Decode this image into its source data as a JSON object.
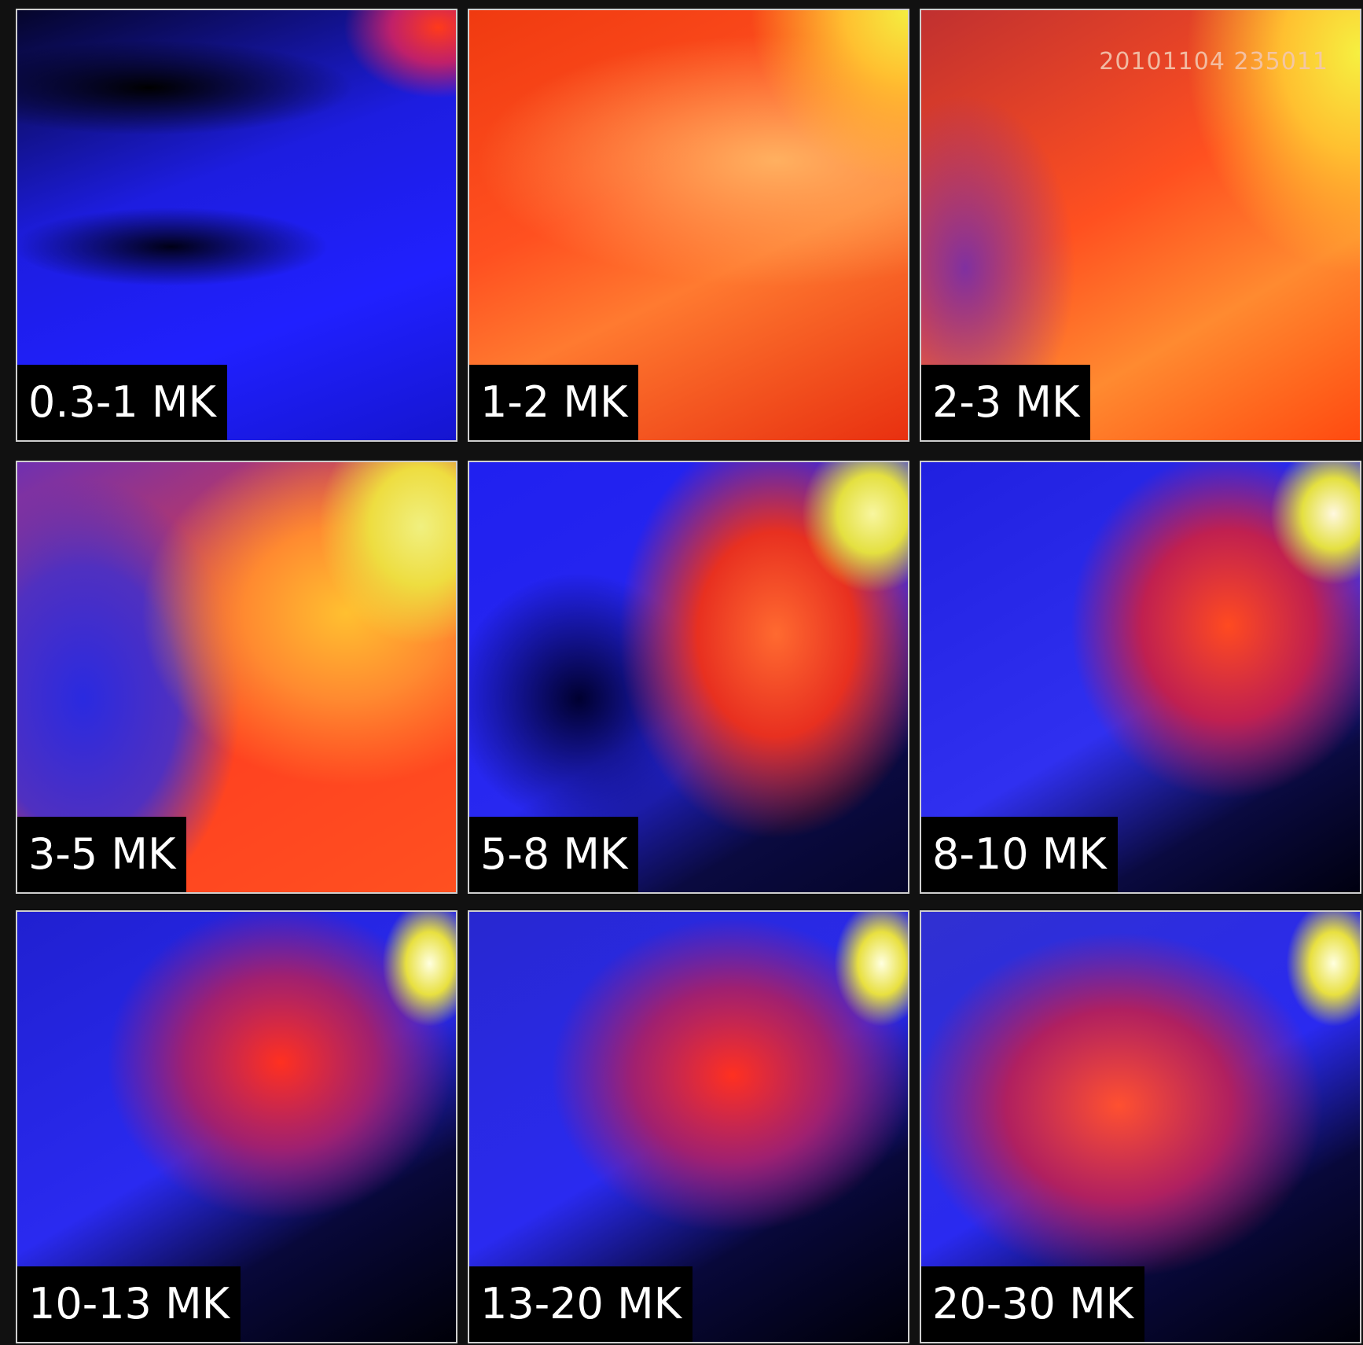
{
  "panels": [
    {
      "label": "0.3-1 MK"
    },
    {
      "label": "1-2 MK"
    },
    {
      "label": "2-3 MK",
      "timestamp": "20101104 235011"
    },
    {
      "label": "3-5 MK"
    },
    {
      "label": "5-8 MK"
    },
    {
      "label": "8-10 MK"
    },
    {
      "label": "10-13 MK"
    },
    {
      "label": "13-20 MK"
    },
    {
      "label": "20-30 MK"
    }
  ]
}
